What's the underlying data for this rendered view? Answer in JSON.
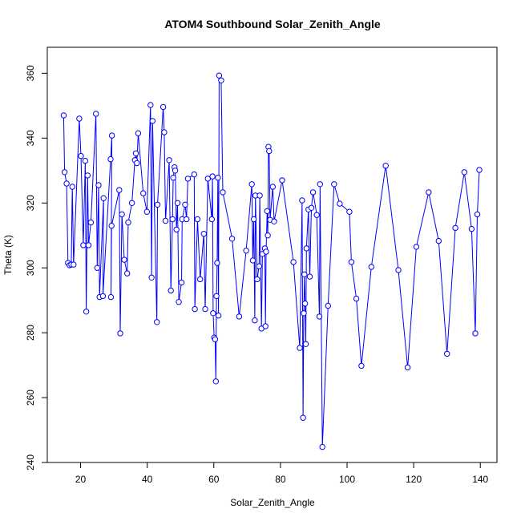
{
  "chart_data": {
    "type": "line",
    "title": "ATOM4 Southbound Solar_Zenith_Angle",
    "xlabel": "Solar_Zenith_Angle",
    "ylabel": "Theta (K)",
    "xlim": [
      10,
      145
    ],
    "ylim": [
      240,
      368
    ],
    "xticks": [
      20,
      40,
      60,
      80,
      100,
      120,
      140
    ],
    "yticks": [
      240,
      260,
      280,
      300,
      320,
      340,
      360
    ],
    "series_color": "#0000ff",
    "grid": false,
    "legend": "none",
    "points": [
      [
        14.9,
        347.0
      ],
      [
        15.2,
        329.5
      ],
      [
        15.8,
        326.0
      ],
      [
        16.2,
        301.5
      ],
      [
        16.7,
        300.8
      ],
      [
        17.2,
        301.0
      ],
      [
        17.5,
        325.0
      ],
      [
        17.9,
        301.0
      ],
      [
        19.6,
        346.0
      ],
      [
        20.1,
        334.5
      ],
      [
        20.8,
        307.0
      ],
      [
        21.4,
        333.0
      ],
      [
        21.7,
        286.5
      ],
      [
        22.1,
        328.5
      ],
      [
        22.4,
        307.0
      ],
      [
        23.1,
        314.0
      ],
      [
        24.6,
        347.5
      ],
      [
        25.0,
        300.0
      ],
      [
        25.4,
        325.5
      ],
      [
        25.7,
        291.0
      ],
      [
        26.9,
        321.5
      ],
      [
        26.7,
        291.3
      ],
      [
        29.0,
        333.5
      ],
      [
        29.4,
        340.8
      ],
      [
        29.1,
        291.0
      ],
      [
        29.3,
        313.0
      ],
      [
        31.6,
        324.0
      ],
      [
        31.9,
        279.8
      ],
      [
        32.4,
        316.5
      ],
      [
        33.1,
        302.5
      ],
      [
        34.0,
        298.3
      ],
      [
        34.3,
        314.0
      ],
      [
        35.4,
        320.0
      ],
      [
        36.3,
        333.2
      ],
      [
        36.6,
        335.3
      ],
      [
        36.9,
        332.3
      ],
      [
        37.3,
        341.5
      ],
      [
        38.8,
        323.0
      ],
      [
        39.9,
        317.3
      ],
      [
        41.0,
        350.2
      ],
      [
        41.3,
        297.0
      ],
      [
        41.6,
        345.3
      ],
      [
        42.9,
        283.3
      ],
      [
        43.1,
        319.5
      ],
      [
        44.8,
        349.6
      ],
      [
        45.1,
        341.8
      ],
      [
        45.5,
        314.5
      ],
      [
        46.6,
        333.2
      ],
      [
        47.1,
        293.0
      ],
      [
        47.6,
        315.0
      ],
      [
        47.8,
        327.8
      ],
      [
        48.2,
        331.0
      ],
      [
        48.4,
        330.0
      ],
      [
        48.8,
        311.8
      ],
      [
        49.1,
        320.0
      ],
      [
        49.5,
        289.5
      ],
      [
        50.3,
        295.5
      ],
      [
        50.5,
        315.0
      ],
      [
        51.4,
        319.5
      ],
      [
        51.8,
        315.0
      ],
      [
        52.2,
        327.5
      ],
      [
        54.1,
        328.8
      ],
      [
        54.3,
        287.3
      ],
      [
        55.1,
        315.0
      ],
      [
        55.9,
        296.5
      ],
      [
        57.0,
        310.5
      ],
      [
        57.4,
        287.3
      ],
      [
        58.2,
        327.5
      ],
      [
        59.4,
        315.0
      ],
      [
        59.6,
        328.2
      ],
      [
        59.8,
        286.0
      ],
      [
        60.1,
        278.5
      ],
      [
        60.4,
        278.0
      ],
      [
        60.6,
        265.0
      ],
      [
        60.8,
        291.3
      ],
      [
        61.0,
        301.5
      ],
      [
        61.2,
        327.8
      ],
      [
        61.4,
        285.3
      ],
      [
        61.6,
        359.3
      ],
      [
        62.2,
        357.8
      ],
      [
        62.7,
        323.3
      ],
      [
        65.5,
        309.0
      ],
      [
        67.6,
        285.0
      ],
      [
        69.7,
        305.3
      ],
      [
        71.4,
        325.8
      ],
      [
        71.7,
        302.3
      ],
      [
        72.0,
        315.0
      ],
      [
        72.3,
        283.8
      ],
      [
        72.5,
        322.3
      ],
      [
        73.0,
        296.5
      ],
      [
        73.6,
        300.5
      ],
      [
        73.8,
        322.3
      ],
      [
        74.3,
        281.3
      ],
      [
        74.6,
        304.3
      ],
      [
        75.3,
        306.0
      ],
      [
        75.5,
        282.0
      ],
      [
        75.7,
        305.0
      ],
      [
        76.0,
        317.5
      ],
      [
        76.2,
        310.0
      ],
      [
        76.4,
        337.3
      ],
      [
        76.6,
        336.0
      ],
      [
        76.9,
        314.8
      ],
      [
        77.7,
        325.0
      ],
      [
        78.1,
        314.3
      ],
      [
        80.5,
        327.0
      ],
      [
        83.9,
        301.8
      ],
      [
        85.8,
        275.3
      ],
      [
        86.5,
        320.8
      ],
      [
        86.8,
        253.8
      ],
      [
        87.0,
        286.0
      ],
      [
        87.2,
        298.0
      ],
      [
        87.4,
        289.0
      ],
      [
        87.6,
        276.5
      ],
      [
        87.8,
        306.0
      ],
      [
        88.4,
        318.0
      ],
      [
        88.8,
        297.3
      ],
      [
        89.3,
        318.5
      ],
      [
        89.8,
        323.3
      ],
      [
        90.9,
        316.3
      ],
      [
        91.7,
        285.0
      ],
      [
        91.9,
        325.8
      ],
      [
        92.6,
        244.8
      ],
      [
        94.3,
        288.3
      ],
      [
        96.1,
        325.8
      ],
      [
        97.8,
        319.8
      ],
      [
        100.7,
        317.3
      ],
      [
        101.3,
        301.8
      ],
      [
        102.8,
        290.5
      ],
      [
        104.3,
        269.8
      ],
      [
        107.3,
        300.3
      ],
      [
        111.6,
        331.5
      ],
      [
        115.4,
        299.3
      ],
      [
        118.2,
        269.3
      ],
      [
        120.8,
        306.5
      ],
      [
        124.5,
        323.3
      ],
      [
        127.5,
        308.3
      ],
      [
        130.0,
        273.5
      ],
      [
        132.5,
        312.3
      ],
      [
        135.2,
        329.5
      ],
      [
        137.4,
        312.0
      ],
      [
        138.5,
        279.8
      ],
      [
        139.1,
        316.5
      ],
      [
        139.7,
        330.2
      ]
    ]
  }
}
